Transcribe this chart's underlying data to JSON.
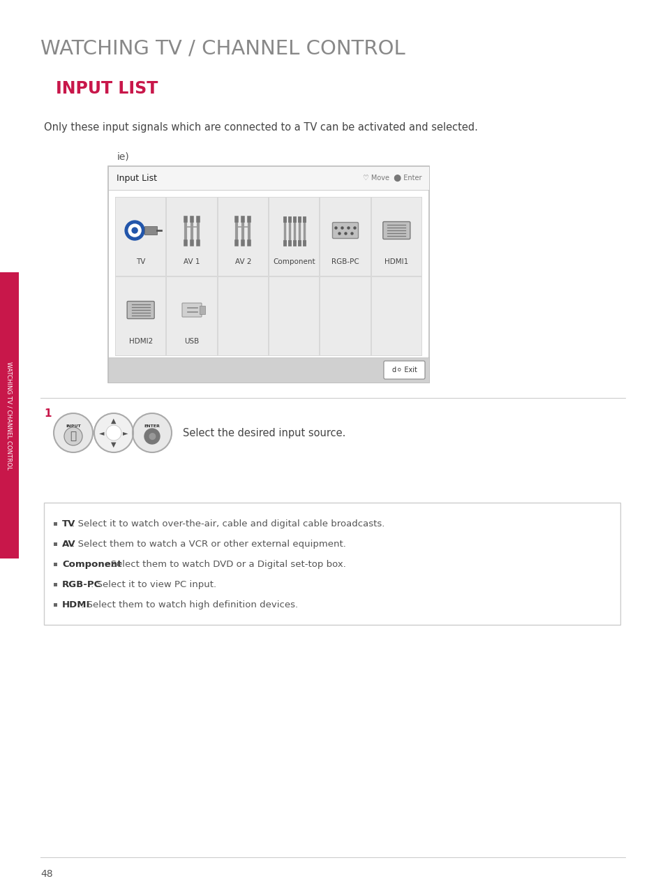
{
  "title": "WATCHING TV / CHANNEL CONTROL",
  "subtitle": "INPUT LIST",
  "subtitle_color": "#c8174a",
  "description": "Only these input signals which are connected to a TV can be activated and selected.",
  "ie_label": "ie)",
  "bg_color": "#ffffff",
  "title_color": "#888888",
  "text_color": "#555555",
  "sidebar_color": "#c8174a",
  "sidebar_text": "WATCHING TV / CHANNEL CONTROL",
  "page_number": "48",
  "input_list_title": "Input List",
  "input_items_row1": [
    "TV",
    "AV 1",
    "AV 2",
    "Component",
    "RGB-PC",
    "HDMI1"
  ],
  "input_items_row2": [
    "HDMI2",
    "USB",
    "",
    "",
    "",
    ""
  ],
  "step_text": "Select the desired input source.",
  "bullet_items": [
    {
      "bold": "TV",
      "rest": ": Select it to watch over-the-air, cable and digital cable broadcasts."
    },
    {
      "bold": "AV",
      "rest": ": Select them to watch a VCR or other external equipment."
    },
    {
      "bold": "Component",
      "rest": ": Select them to watch DVD or a Digital set-top box."
    },
    {
      "bold": "RGB-PC",
      "rest": ": Select it to view PC input."
    },
    {
      "bold": "HDMI",
      "rest": ": Select them to watch high definition devices."
    }
  ]
}
